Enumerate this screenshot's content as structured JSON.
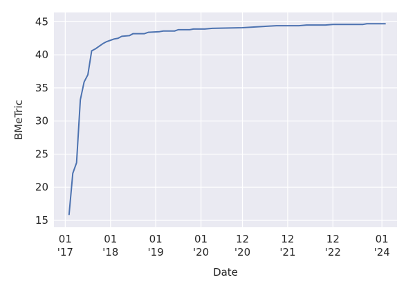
{
  "chart_data": {
    "type": "line",
    "xlabel": "Date",
    "ylabel": "BMeTric",
    "x": [
      "2017-02",
      "2017-03",
      "2017-04",
      "2017-05",
      "2017-06",
      "2017-07",
      "2017-08",
      "2017-09",
      "2017-10",
      "2017-11",
      "2017-12",
      "2018-01",
      "2018-02",
      "2018-03",
      "2018-04",
      "2018-06",
      "2018-07",
      "2018-10",
      "2018-11",
      "2019-02",
      "2019-03",
      "2019-06",
      "2019-07",
      "2019-10",
      "2019-11",
      "2020-02",
      "2020-04",
      "2020-12",
      "2021-03",
      "2021-06",
      "2021-09",
      "2022-03",
      "2022-05",
      "2022-10",
      "2022-12",
      "2023-08",
      "2023-09",
      "2024-02"
    ],
    "series": [
      {
        "color": "#4c72b0",
        "values": [
          15.8,
          22.1,
          23.7,
          33.2,
          35.9,
          37.0,
          40.6,
          40.9,
          41.3,
          41.7,
          42.0,
          42.2,
          42.4,
          42.5,
          42.8,
          42.9,
          43.2,
          43.2,
          43.4,
          43.5,
          43.6,
          43.6,
          43.8,
          43.8,
          43.9,
          43.9,
          44.0,
          44.1,
          44.2,
          44.3,
          44.4,
          44.4,
          44.5,
          44.5,
          44.6,
          44.6,
          44.7,
          44.7
        ]
      }
    ],
    "xlim": [
      "2016-10",
      "2024-05"
    ],
    "xticks": [
      {
        "value": "2017-01",
        "label": [
          "01",
          "'17"
        ]
      },
      {
        "value": "2018-01",
        "label": [
          "01",
          "'18"
        ]
      },
      {
        "value": "2019-01",
        "label": [
          "01",
          "'19"
        ]
      },
      {
        "value": "2020-01",
        "label": [
          "01",
          "'20"
        ]
      },
      {
        "value": "2020-12",
        "label": [
          "12",
          "'20"
        ]
      },
      {
        "value": "2021-12",
        "label": [
          "12",
          "'21"
        ]
      },
      {
        "value": "2022-12",
        "label": [
          "12",
          "'22"
        ]
      },
      {
        "value": "2024-01",
        "label": [
          "01",
          "'24"
        ]
      }
    ],
    "ylim": [
      13.95,
      46.4
    ],
    "yticks": [
      15,
      20,
      25,
      30,
      35,
      40,
      45
    ],
    "grid": true,
    "background": "#eaeaf2"
  }
}
